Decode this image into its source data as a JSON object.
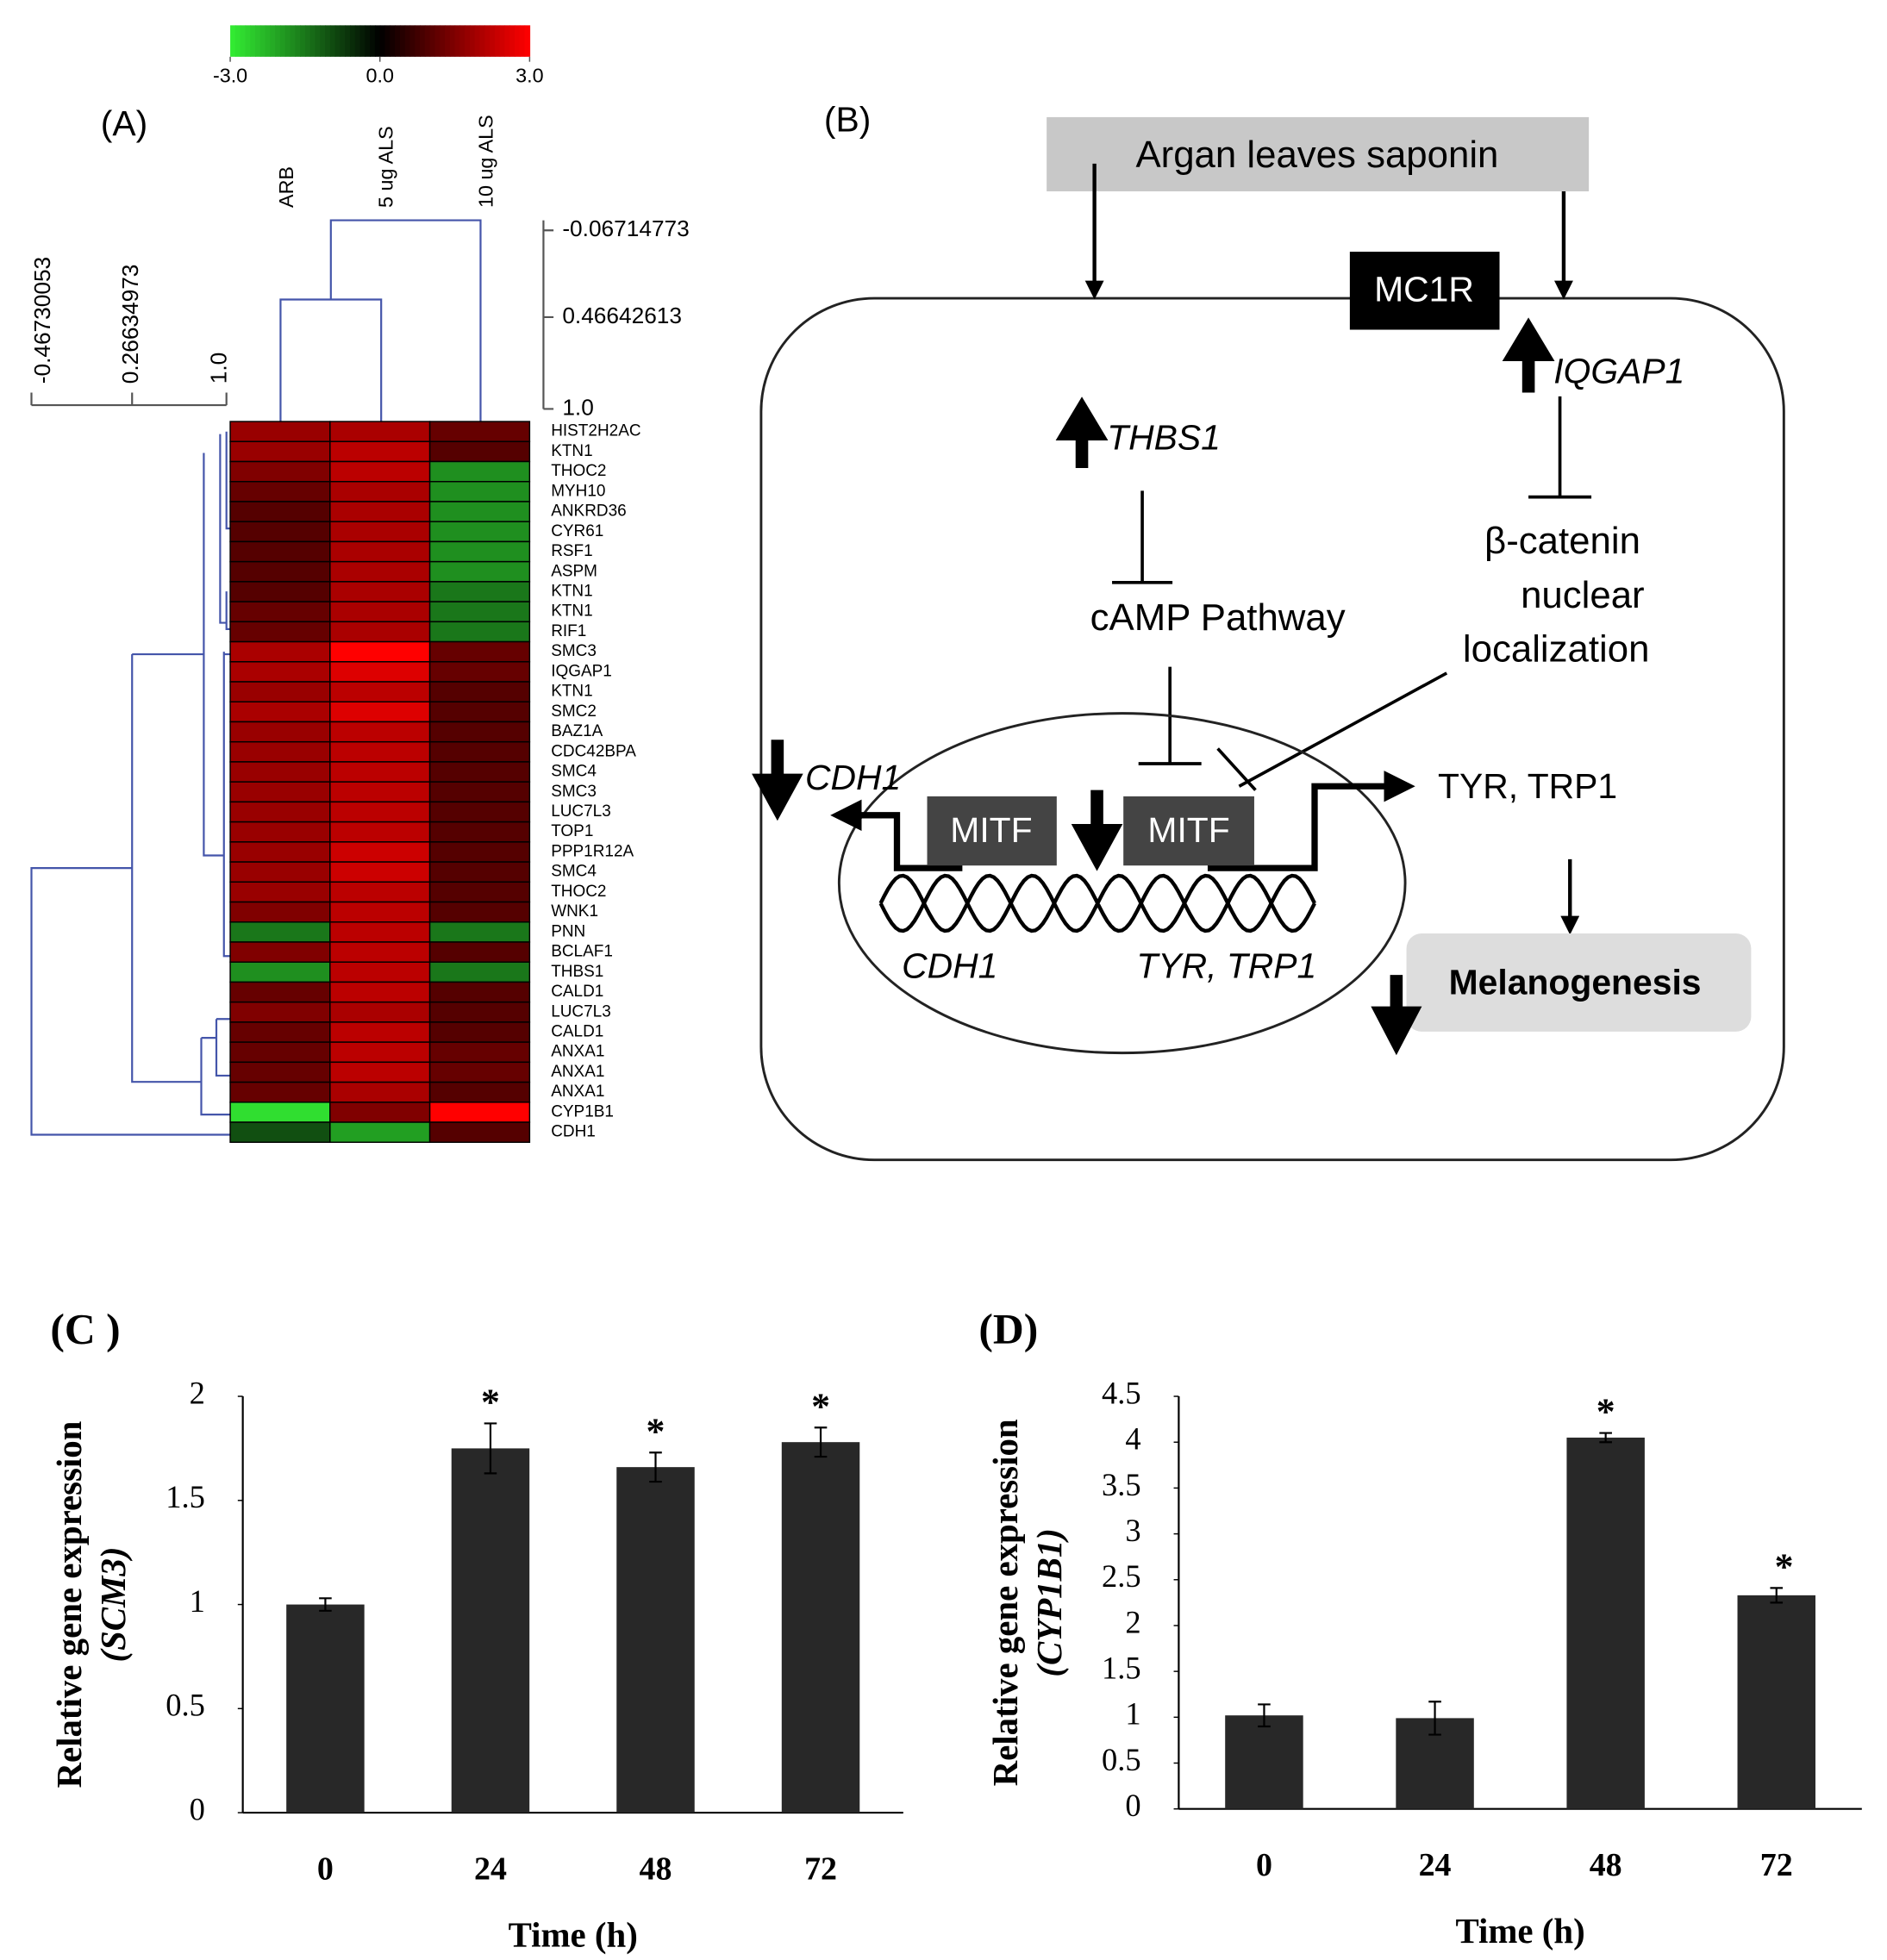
{
  "panel_a": {
    "label": "(A)",
    "color_scale": {
      "lim": [
        -3,
        3
      ],
      "colors": [
        "#33ee33",
        "#000000",
        "#ff0000"
      ],
      "ticks": [
        {
          "value": -3,
          "label": "-3.0"
        },
        {
          "value": 0,
          "label": "0.0"
        },
        {
          "value": 3,
          "label": "3.0"
        }
      ]
    },
    "columns": [
      "ARB",
      "5 ug ALS",
      "10 ug ALS"
    ],
    "column_tree_scale": [
      "-0.06714773",
      "0.46642613",
      "1.0"
    ],
    "row_tree_scale": [
      "-0.46730053",
      "0.26634973",
      "1.0"
    ],
    "rows": [
      "HIST2H2AC",
      "KTN1",
      "THOC2",
      "MYH10",
      "ANKRD36",
      "CYR61",
      "RSF1",
      "ASPM",
      "KTN1",
      "KTN1",
      "RIF1",
      "SMC3",
      "IQGAP1",
      "KTN1",
      "SMC2",
      "BAZ1A",
      "CDC42BPA",
      "SMC4",
      "SMC3",
      "LUC7L3",
      "TOP1",
      "PPP1R12A",
      "SMC4",
      "THOC2",
      "WNK1",
      "PNN",
      "BCLAF1",
      "THBS1",
      "CALD1",
      "LUC7L3",
      "CALD1",
      "ANXA1",
      "ANXA1",
      "ANXA1",
      "CYP1B1",
      "CDH1"
    ],
    "values": [
      [
        1.8,
        2.0,
        1.2
      ],
      [
        1.8,
        2.2,
        1.0
      ],
      [
        1.5,
        2.2,
        -1.8
      ],
      [
        1.2,
        2.0,
        -1.8
      ],
      [
        1.0,
        2.0,
        -1.8
      ],
      [
        1.0,
        2.0,
        -1.8
      ],
      [
        1.0,
        2.0,
        -1.8
      ],
      [
        1.0,
        2.0,
        -1.8
      ],
      [
        1.0,
        2.0,
        -1.5
      ],
      [
        1.2,
        2.0,
        -1.5
      ],
      [
        1.2,
        2.0,
        -1.5
      ],
      [
        2.0,
        3.0,
        1.2
      ],
      [
        2.0,
        2.6,
        1.2
      ],
      [
        1.8,
        2.2,
        1.0
      ],
      [
        2.0,
        2.6,
        1.0
      ],
      [
        1.8,
        2.2,
        1.0
      ],
      [
        1.8,
        2.2,
        1.0
      ],
      [
        1.8,
        2.2,
        1.0
      ],
      [
        1.8,
        2.2,
        1.0
      ],
      [
        1.8,
        2.2,
        1.0
      ],
      [
        1.8,
        2.2,
        1.0
      ],
      [
        1.8,
        2.4,
        1.0
      ],
      [
        1.8,
        2.4,
        1.0
      ],
      [
        1.8,
        2.2,
        1.0
      ],
      [
        1.5,
        2.2,
        1.0
      ],
      [
        -1.5,
        2.2,
        -1.5
      ],
      [
        1.5,
        2.2,
        1.0
      ],
      [
        -1.8,
        2.2,
        -1.5
      ],
      [
        1.2,
        2.2,
        1.0
      ],
      [
        1.5,
        2.0,
        1.0
      ],
      [
        1.2,
        2.2,
        1.0
      ],
      [
        1.2,
        2.2,
        1.2
      ],
      [
        1.2,
        2.2,
        1.2
      ],
      [
        1.2,
        2.0,
        1.0
      ],
      [
        -2.8,
        1.5,
        3.0
      ],
      [
        -1.0,
        -2.0,
        1.0
      ]
    ]
  },
  "panel_b": {
    "label": "(B)",
    "source": "Argan leaves saponin",
    "receptor": "MC1R",
    "iqgap1": "IQGAP1",
    "thbs1": "THBS1",
    "camp": "cAMP Pathway",
    "beta_catenin": [
      "β-catenin",
      "nuclear",
      "localization"
    ],
    "cdh1_out": "CDH1",
    "mitf": [
      "MITF",
      "MITF"
    ],
    "tyr_out": "TYR, TRP1",
    "cdh1_gene": "CDH1",
    "tyr_gene": "TYR, TRP1",
    "melanogenesis": "Melanogenesis"
  },
  "chart_data": [
    {
      "type": "bar",
      "title": "(C )",
      "ylabel": [
        "Relative gene expression",
        "(SCM3)"
      ],
      "xlabel": "Time (h)",
      "categories": [
        "0",
        "24",
        "48",
        "72"
      ],
      "values": [
        1.0,
        1.75,
        1.66,
        1.78
      ],
      "errors": [
        0.03,
        0.12,
        0.07,
        0.07
      ],
      "annotations": [
        null,
        "*",
        "*",
        "*"
      ],
      "color": "#282828",
      "ylim": [
        0,
        2
      ],
      "yticks": [
        0,
        0.5,
        1,
        1.5,
        2
      ]
    },
    {
      "type": "bar",
      "title": "(D)",
      "ylabel": [
        "Relative gene expression",
        "(CYP1B1)"
      ],
      "xlabel": "Time (h)",
      "categories": [
        "0",
        "24",
        "48",
        "72"
      ],
      "values": [
        1.02,
        0.99,
        4.05,
        2.33
      ],
      "errors": [
        0.12,
        0.18,
        0.05,
        0.08
      ],
      "annotations": [
        null,
        null,
        "*",
        "*"
      ],
      "color": "#282828",
      "ylim": [
        0,
        4.5
      ],
      "yticks": [
        0,
        0.5,
        1,
        1.5,
        2,
        2.5,
        3,
        3.5,
        4,
        4.5
      ]
    }
  ]
}
